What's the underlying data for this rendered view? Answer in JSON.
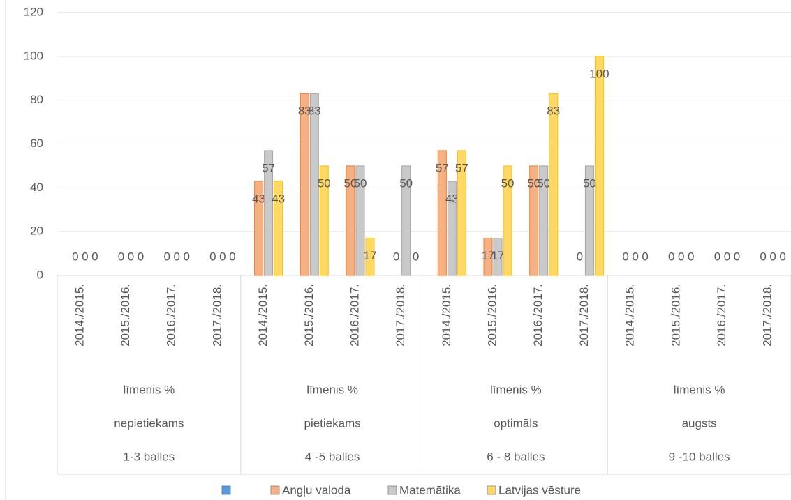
{
  "chart_data": {
    "type": "bar",
    "categories": [
      "2014./2015.",
      "2015./2016.",
      "2016./2017.",
      "2017./2018.",
      "2014./2015.",
      "2015./2016.",
      "2016./2017.",
      "2017./2018.",
      "2014./2015.",
      "2015./2016.",
      "2016./2017.",
      "2017./2018.",
      "2014./2015.",
      "2015./2016.",
      "2016./2017.",
      "2017./2018."
    ],
    "category_groups": [
      {
        "labels": [
          "līmenis %",
          "nepietiekams",
          "1-3 balles"
        ]
      },
      {
        "labels": [
          "līmenis %",
          "pietiekams",
          "4 -5 balles"
        ]
      },
      {
        "labels": [
          "līmenis %",
          "optimāls",
          "6 - 8 balles"
        ]
      },
      {
        "labels": [
          "līmenis %",
          "augsts",
          "9 -10 balles"
        ]
      }
    ],
    "series": [
      {
        "color": "#5b9bd5",
        "values": [
          null,
          null,
          null,
          null,
          null,
          null,
          null,
          null,
          null,
          null,
          null,
          null,
          null,
          null,
          null,
          null
        ]
      },
      {
        "name": "Angļu valoda",
        "color": "#f4b183",
        "values": [
          0,
          0,
          0,
          0,
          43,
          83,
          50,
          0,
          57,
          17,
          50,
          0,
          0,
          0,
          0,
          0
        ]
      },
      {
        "name": "Matemātika",
        "color": "#c9c9c9",
        "values": [
          0,
          0,
          0,
          0,
          57,
          83,
          50,
          50,
          43,
          17,
          50,
          50,
          0,
          0,
          0,
          0
        ]
      },
      {
        "name": "Latvijas vēsture",
        "color": "#ffd966",
        "values": [
          0,
          0,
          0,
          0,
          43,
          50,
          17,
          0,
          57,
          50,
          83,
          100,
          0,
          0,
          0,
          0
        ]
      }
    ],
    "ylim": [
      0,
      120
    ],
    "yticks": [
      0,
      20,
      40,
      60,
      80,
      100,
      120
    ],
    "grid": true
  }
}
